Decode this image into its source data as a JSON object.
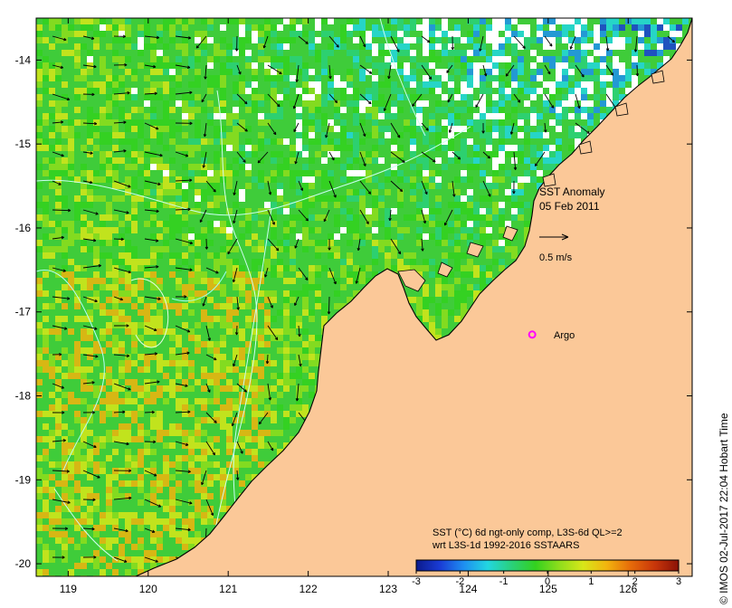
{
  "map": {
    "title": "SST Anomaly",
    "date": "05 Feb 2011",
    "vector_scale_label": "0.5 m/s",
    "argo_label": "Argo",
    "argo_position": [
      124.8,
      -17.27
    ],
    "longitude_range": [
      118.6,
      126.8
    ],
    "latitude_range": [
      -20.15,
      -13.5
    ],
    "longitude_ticks": [
      "119",
      "120",
      "121",
      "122",
      "123",
      "124",
      "125",
      "126"
    ],
    "latitude_ticks": [
      "-14",
      "-15",
      "-16",
      "-17",
      "-18",
      "-19",
      "-20"
    ],
    "colorbar": {
      "line1": "SST (°C) 6d ngt-only comp, L3S-6d QL>=2",
      "line2": "wrt L3S-1d 1992-2016 SSTAARS",
      "ticks": [
        "-3",
        "-2",
        "-1",
        "0",
        "1",
        "2",
        "3"
      ],
      "range": [
        -3,
        3
      ],
      "colors": [
        "#0b1a8c",
        "#1a3cd6",
        "#1e8ff0",
        "#22d6e0",
        "#2ad07a",
        "#33d11f",
        "#8fdd1c",
        "#d8e619",
        "#f2b30e",
        "#e56a0a",
        "#c8360a",
        "#8a1207"
      ]
    },
    "credit": "© IMOS 02-Jul-2017 22:04 Hobart Time",
    "colors": {
      "land": "#fbc898",
      "no_data": "#ffffff",
      "coast": "#000000",
      "argo": "#ff00ff",
      "ocean_base": "#3fcc3a"
    }
  }
}
